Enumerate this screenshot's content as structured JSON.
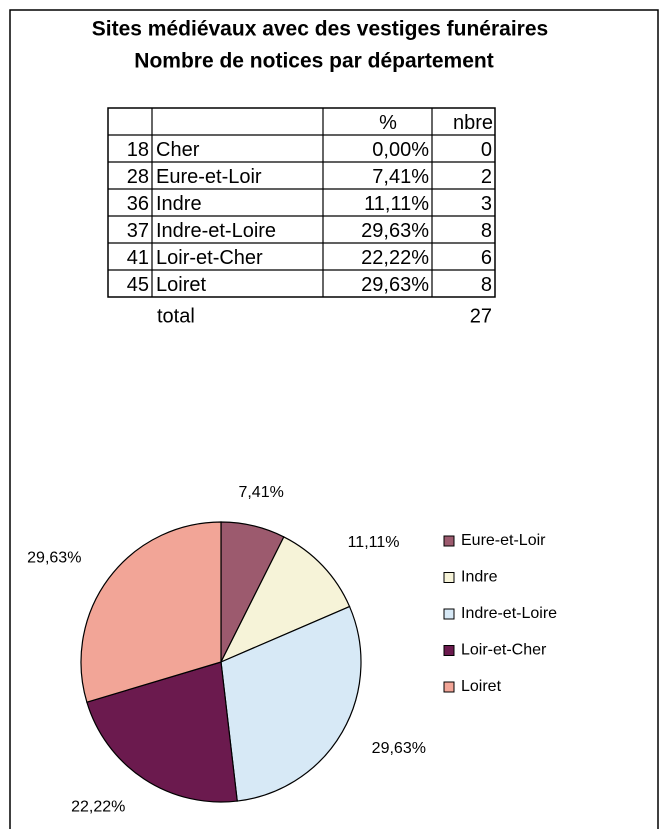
{
  "header": {
    "title": "Sites médiévaux avec des vestiges funéraires",
    "subtitle": "Nombre de notices par département"
  },
  "table": {
    "columns": [
      "%",
      "nbre"
    ],
    "rows": [
      [
        "18",
        "Cher",
        "0,00%",
        "0"
      ],
      [
        "28",
        "Eure-et-Loir",
        "7,41%",
        "2"
      ],
      [
        "36",
        "Indre",
        "11,11%",
        "3"
      ],
      [
        "37",
        "Indre-et-Loire",
        "29,63%",
        "8"
      ],
      [
        "41",
        "Loir-et-Cher",
        "22,22%",
        "6"
      ],
      [
        "45",
        "Loiret",
        "29,63%",
        "8"
      ]
    ],
    "total": {
      "label": "total",
      "value": "27"
    }
  },
  "chart_data": {
    "type": "pie",
    "categories": [
      "Eure-et-Loir",
      "Indre",
      "Indre-et-Loire",
      "Loir-et-Cher",
      "Loiret"
    ],
    "values": [
      7.41,
      11.11,
      29.63,
      22.22,
      29.63
    ],
    "value_labels": [
      "7,41%",
      "11,11%",
      "29,63%",
      "22,22%",
      "29,63%"
    ],
    "colors": [
      "#9c5a6e",
      "#f6f3d8",
      "#d7e9f6",
      "#6b1a4e",
      "#f2a597"
    ],
    "legend": "right"
  }
}
